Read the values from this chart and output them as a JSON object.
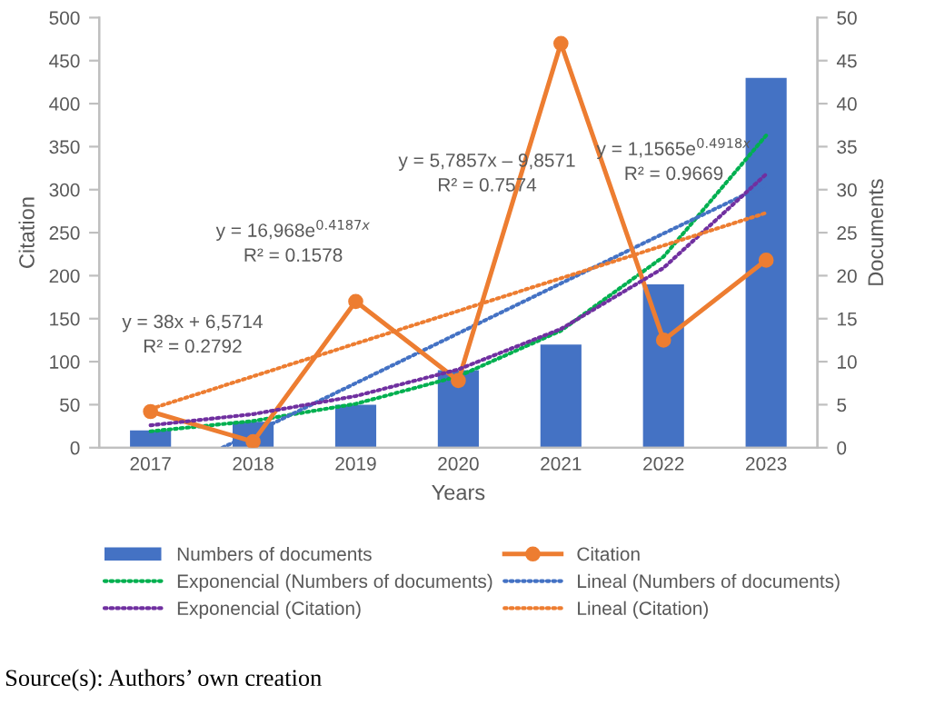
{
  "chart_data": {
    "type": "bar",
    "xlabel": "Years",
    "ylabel": "Citation",
    "y2label": "Documents",
    "x": [
      2017,
      2018,
      2019,
      2020,
      2021,
      2022,
      2023
    ],
    "xlim": [
      2016.5,
      2023.5
    ],
    "xticks": [
      2017,
      2018,
      2019,
      2020,
      2021,
      2022,
      2023
    ],
    "ylim": [
      0,
      500
    ],
    "yticks": [
      0,
      50,
      100,
      150,
      200,
      250,
      300,
      350,
      400,
      450,
      500
    ],
    "y2lim": [
      0,
      50
    ],
    "y2ticks": [
      0,
      5,
      10,
      15,
      20,
      25,
      30,
      35,
      40,
      45,
      50
    ],
    "grid": false,
    "legend": "bottom",
    "series": [
      {
        "name": "Numbers of documents",
        "axis": "y2",
        "color": "#4472c4",
        "values": [
          2,
          3,
          5,
          9,
          12,
          19,
          43
        ]
      },
      {
        "name": "Citation",
        "type": "line",
        "axis": "y",
        "color": "#ed7d31",
        "marker": "circle",
        "line_style": "solid",
        "values": [
          42,
          7,
          170,
          78,
          470,
          125,
          218
        ]
      },
      {
        "name": "Exponencial (Numbers of documents)",
        "type": "line",
        "axis": "y2",
        "color": "#00b050",
        "line_style": "dotted",
        "x": [
          2017,
          2018,
          2019,
          2020,
          2021,
          2022,
          2023
        ],
        "values": [
          1.9,
          3.1,
          5.1,
          8.3,
          13.6,
          22.2,
          36.3
        ]
      },
      {
        "name": "Lineal (Numbers of documents)",
        "type": "line",
        "axis": "y2",
        "color": "#4472c4",
        "line_style": "dotted",
        "x": [
          2017.7,
          2018,
          2019,
          2020,
          2021,
          2022,
          2023
        ],
        "values": [
          0,
          1.7,
          7.5,
          13.3,
          19.1,
          24.9,
          30.6
        ]
      },
      {
        "name": "Exponencial (Citation)",
        "type": "line",
        "axis": "y",
        "color": "#7030a0",
        "line_style": "dotted",
        "x": [
          2017,
          2018,
          2019,
          2020,
          2021,
          2022,
          2023
        ],
        "values": [
          26,
          39,
          60,
          91,
          138,
          209,
          318
        ]
      },
      {
        "name": "Lineal (Citation)",
        "type": "line",
        "axis": "y",
        "color": "#ed7d31",
        "line_style": "dotted",
        "x": [
          2017,
          2023
        ],
        "values": [
          45,
          273
        ]
      }
    ],
    "annotations": [
      "y = 38x + 6,5714\nR² = 0.2792",
      "y = 16,968e$^{0.4187x}$\nR² = 0.1578",
      "y = 5,7857x – 9,8571\nR² = 0.7574",
      "y = 1,1565e$^{0.4918x}$\nR² = 0.9669",
      "Source(s): Authors’ own creation"
    ]
  }
}
